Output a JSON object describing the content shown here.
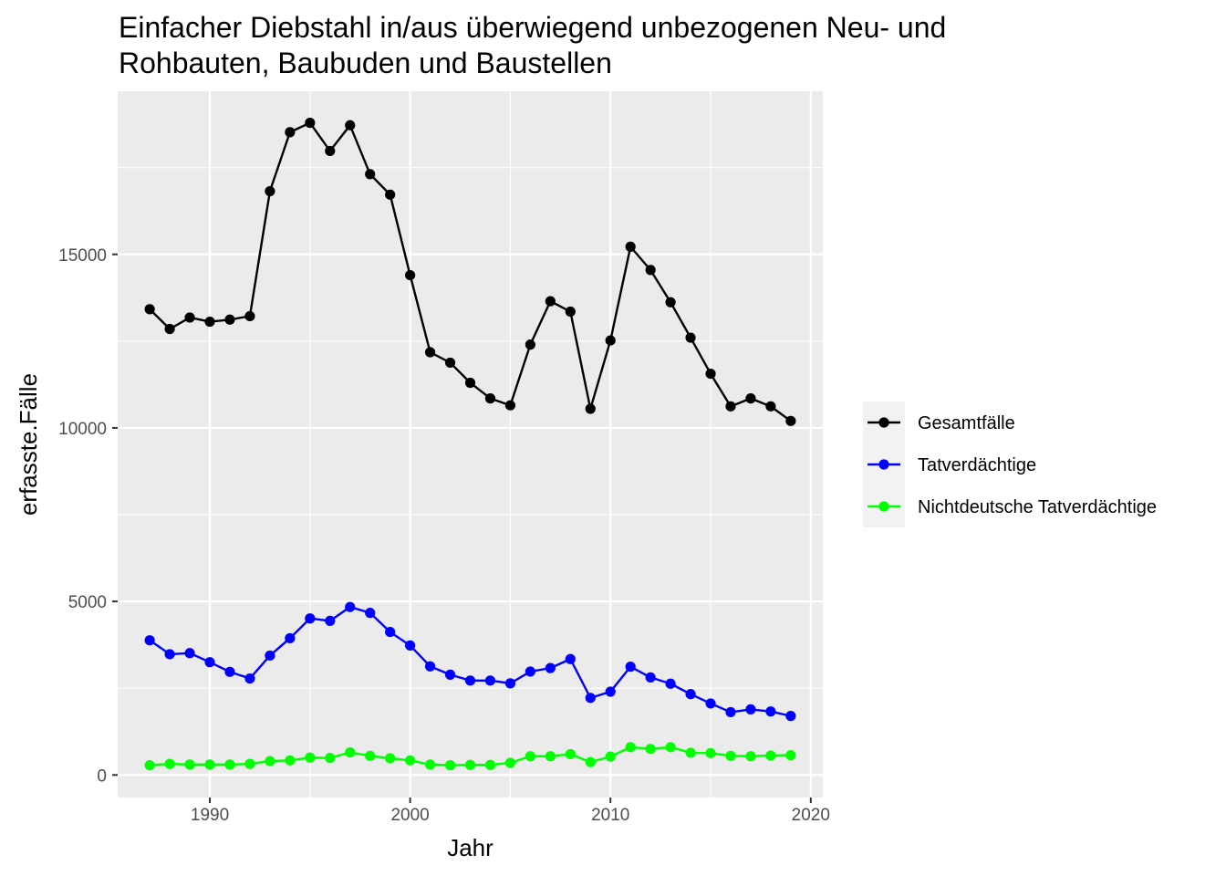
{
  "chart_data": {
    "type": "line",
    "title": "Einfacher Diebstahl in/aus überwiegend unbezogenen Neu- und Rohbauten, Baubuden und Baustellen",
    "title_lines": [
      "Einfacher Diebstahl in/aus überwiegend unbezogenen Neu- und",
      "Rohbauten, Baubuden und Baustellen"
    ],
    "xlabel": "Jahr",
    "ylabel": "erfasste.Fälle",
    "xlim": [
      1985.4,
      2020.6
    ],
    "ylim": [
      -650,
      19700
    ],
    "x_ticks": [
      1990,
      2000,
      2010,
      2020
    ],
    "y_ticks": [
      0,
      5000,
      10000,
      15000
    ],
    "x_tick_labels": [
      "1990",
      "2000",
      "2010",
      "2020"
    ],
    "y_tick_labels": [
      "0",
      "5000",
      "10000",
      "15000"
    ],
    "grid": true,
    "legend_position": "right",
    "x": [
      1987,
      1988,
      1989,
      1990,
      1991,
      1992,
      1993,
      1994,
      1995,
      1996,
      1997,
      1998,
      1999,
      2000,
      2001,
      2002,
      2003,
      2004,
      2005,
      2006,
      2007,
      2008,
      2009,
      2010,
      2011,
      2012,
      2013,
      2014,
      2015,
      2016,
      2017,
      2018,
      2019
    ],
    "series": [
      {
        "name": "Gesamtfälle",
        "color": "#000000",
        "values": [
          13420,
          12850,
          13180,
          13060,
          13120,
          13220,
          16820,
          18520,
          18790,
          17980,
          18720,
          17310,
          16720,
          14400,
          12180,
          11880,
          11300,
          10850,
          10650,
          12400,
          13650,
          13350,
          10550,
          12520,
          15220,
          14550,
          13620,
          12600,
          11560,
          10620,
          10850,
          10620,
          10200
        ]
      },
      {
        "name": "Tatverdächtige",
        "color": "#0000ff",
        "values": [
          3880,
          3480,
          3510,
          3250,
          2970,
          2780,
          3440,
          3940,
          4510,
          4440,
          4840,
          4670,
          4120,
          3730,
          3130,
          2890,
          2720,
          2720,
          2640,
          2980,
          3080,
          3340,
          2220,
          2400,
          3120,
          2810,
          2630,
          2330,
          2060,
          1810,
          1890,
          1830,
          1700
        ]
      },
      {
        "name": "Nichtdeutsche Tatverdächtige",
        "color": "#00ff00",
        "values": [
          280,
          320,
          300,
          300,
          300,
          320,
          400,
          420,
          500,
          490,
          650,
          550,
          480,
          420,
          300,
          280,
          290,
          290,
          350,
          540,
          540,
          600,
          370,
          530,
          800,
          750,
          800,
          640,
          630,
          550,
          540,
          560,
          570
        ]
      }
    ]
  }
}
